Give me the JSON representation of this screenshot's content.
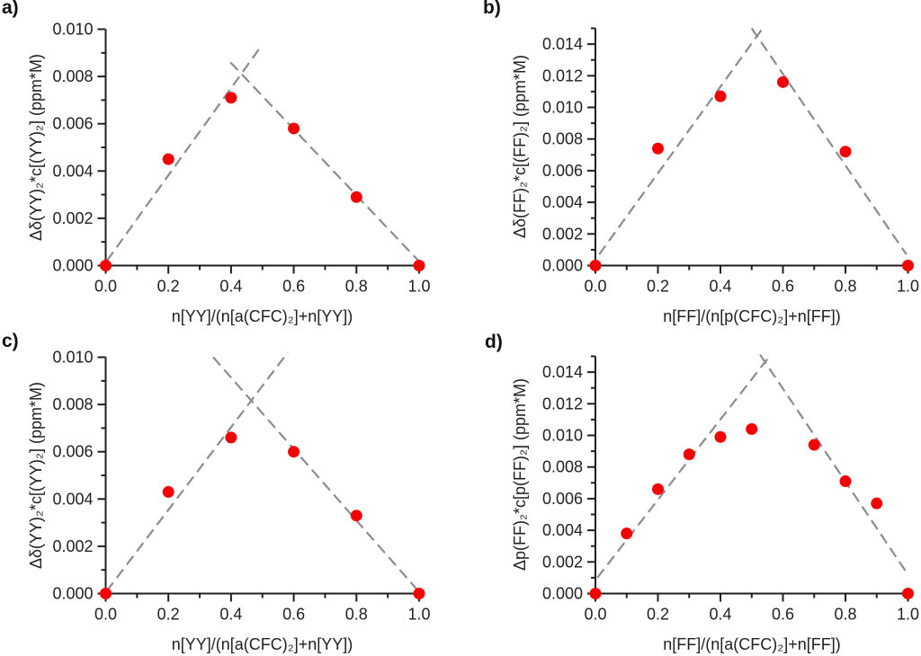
{
  "figure": {
    "background": "#ffffff"
  },
  "colors": {
    "marker": "#f40000",
    "trend_line": "#8c8c8c",
    "axis": "#1f1f1f",
    "text": "#1f1f1f"
  },
  "chart_data": [
    {
      "id": "a",
      "panel_label": "a)",
      "type": "scatter",
      "xlabel": "n[YY]/(n[a(CFC)₂]+n[YY])",
      "ylabel": "Δδ(YY)₂*c[(YY)₂] (ppm*M)",
      "xlim": [
        0,
        1.0
      ],
      "ylim": [
        0,
        0.01
      ],
      "x": [
        0.0,
        0.2,
        0.4,
        0.6,
        0.8,
        1.0
      ],
      "y": [
        0.0,
        0.0045,
        0.0071,
        0.0058,
        0.0029,
        0.0
      ],
      "xticks": [
        0.0,
        0.2,
        0.4,
        0.6,
        0.8,
        1.0
      ],
      "xtick_labels": [
        "0.0",
        "0.2",
        "0.4",
        "0.6",
        "0.8",
        "1.0"
      ],
      "xminor": [
        0.1,
        0.3,
        0.5,
        0.7,
        0.9
      ],
      "yticks": [
        0.0,
        0.002,
        0.004,
        0.006,
        0.008,
        0.01
      ],
      "ytick_labels": [
        "0.000",
        "0.002",
        "0.004",
        "0.006",
        "0.008",
        "0.010"
      ],
      "yminor": [
        0.001,
        0.003,
        0.005,
        0.007,
        0.009
      ],
      "trend_lines": [
        {
          "name": "rising-tangent",
          "x1": 0.004,
          "y1": 0.0002,
          "x2": 0.497,
          "y2": 0.0093
        },
        {
          "name": "falling-tangent",
          "x1": 0.398,
          "y1": 0.0086,
          "x2": 0.998,
          "y2": 0.0002
        }
      ]
    },
    {
      "id": "b",
      "panel_label": "b)",
      "type": "scatter",
      "xlabel": "n[FF]/(n[p(CFC)₂]+n[FF])",
      "ylabel": "Δδ(FF)₂*c[(FF)₂] (ppm*M)",
      "xlim": [
        0,
        1.0
      ],
      "ylim": [
        0,
        0.015
      ],
      "x": [
        0.0,
        0.2,
        0.4,
        0.6,
        0.8,
        1.0
      ],
      "y": [
        0.0,
        0.0074,
        0.0107,
        0.0116,
        0.0072,
        0.0
      ],
      "xticks": [
        0.0,
        0.2,
        0.4,
        0.6,
        0.8,
        1.0
      ],
      "xtick_labels": [
        "0.0",
        "0.2",
        "0.4",
        "0.6",
        "0.8",
        "1.0"
      ],
      "xminor": [
        0.1,
        0.3,
        0.5,
        0.7,
        0.9
      ],
      "yticks": [
        0.0,
        0.002,
        0.004,
        0.006,
        0.008,
        0.01,
        0.012,
        0.014
      ],
      "ytick_labels": [
        "0.000",
        "0.002",
        "0.004",
        "0.006",
        "0.008",
        "0.010",
        "0.012",
        "0.014"
      ],
      "yminor": [
        0.001,
        0.003,
        0.005,
        0.007,
        0.009,
        0.011,
        0.013,
        0.015
      ],
      "trend_lines": [
        {
          "name": "rising-tangent",
          "x1": 0.012,
          "y1": 0.0007,
          "x2": 0.535,
          "y2": 0.015
        },
        {
          "name": "falling-tangent",
          "x1": 0.5,
          "y1": 0.015,
          "x2": 0.995,
          "y2": 0.0007
        }
      ]
    },
    {
      "id": "c",
      "panel_label": "c)",
      "type": "scatter",
      "xlabel": "n[YY]/(n[a(CFC)₂]+n[YY])",
      "ylabel": "Δδ(YY)₂*c[(YY)₂] (ppm*M)",
      "xlim": [
        0,
        1.0
      ],
      "ylim": [
        0,
        0.01
      ],
      "x": [
        0.0,
        0.2,
        0.4,
        0.6,
        0.8,
        1.0
      ],
      "y": [
        0.0,
        0.0043,
        0.0066,
        0.006,
        0.0033,
        0.0
      ],
      "xticks": [
        0.0,
        0.2,
        0.4,
        0.6,
        0.8,
        1.0
      ],
      "xtick_labels": [
        "0.0",
        "0.2",
        "0.4",
        "0.6",
        "0.8",
        "1.0"
      ],
      "xminor": [
        0.1,
        0.3,
        0.5,
        0.7,
        0.9
      ],
      "yticks": [
        0.0,
        0.002,
        0.004,
        0.006,
        0.008,
        0.01
      ],
      "ytick_labels": [
        "0.000",
        "0.002",
        "0.004",
        "0.006",
        "0.008",
        "0.010"
      ],
      "yminor": [
        0.001,
        0.003,
        0.005,
        0.007,
        0.009
      ],
      "trend_lines": [
        {
          "name": "rising-tangent",
          "x1": 0.003,
          "y1": 0.0001,
          "x2": 0.581,
          "y2": 0.0102
        },
        {
          "name": "falling-tangent",
          "x1": 0.343,
          "y1": 0.01,
          "x2": 0.998,
          "y2": 0.0001
        }
      ]
    },
    {
      "id": "d",
      "panel_label": "d)",
      "type": "scatter",
      "xlabel": "n[FF]/(n[a(CFC)₂]+n[FF])",
      "ylabel": "Δp(FF)₂*c[p(FF)₂] (ppm*M)",
      "xlim": [
        0,
        1.0
      ],
      "ylim": [
        0,
        0.015
      ],
      "x": [
        0.0,
        0.1,
        0.2,
        0.3,
        0.4,
        0.5,
        0.7,
        0.8,
        0.9,
        1.0
      ],
      "y": [
        0.0,
        0.0038,
        0.0066,
        0.0088,
        0.0099,
        0.0104,
        0.0094,
        0.0071,
        0.0057,
        0.0
      ],
      "xticks": [
        0.0,
        0.2,
        0.4,
        0.6,
        0.8,
        1.0
      ],
      "xtick_labels": [
        "0.0",
        "0.2",
        "0.4",
        "0.6",
        "0.8",
        "1.0"
      ],
      "xminor": [
        0.1,
        0.3,
        0.5,
        0.7,
        0.9
      ],
      "yticks": [
        0.0,
        0.002,
        0.004,
        0.006,
        0.008,
        0.01,
        0.012,
        0.014
      ],
      "ytick_labels": [
        "0.000",
        "0.002",
        "0.004",
        "0.006",
        "0.008",
        "0.010",
        "0.012",
        "0.014"
      ],
      "yminor": [
        0.001,
        0.003,
        0.005,
        0.007,
        0.009,
        0.011,
        0.013,
        0.015
      ],
      "trend_lines": [
        {
          "name": "rising-tangent",
          "x1": 0.006,
          "y1": 0.001,
          "x2": 0.561,
          "y2": 0.0151
        },
        {
          "name": "falling-tangent",
          "x1": 0.527,
          "y1": 0.0151,
          "x2": 1.0,
          "y2": 0.0012
        }
      ]
    }
  ]
}
